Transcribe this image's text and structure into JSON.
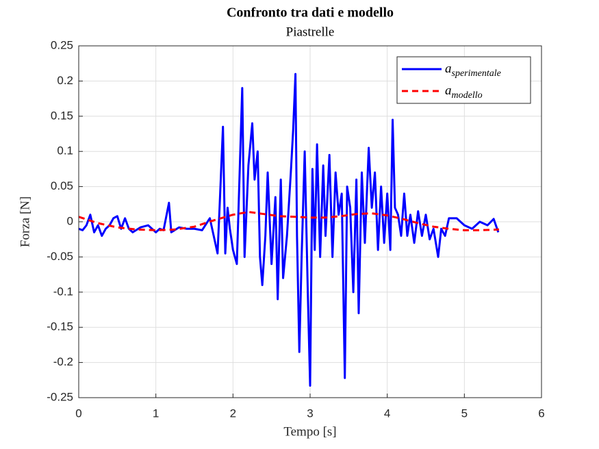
{
  "chart_data": {
    "type": "line",
    "title": "Confronto tra dati e modello",
    "subtitle": "Piastrelle",
    "xlabel": "Tempo [s]",
    "ylabel": "Forza [N]",
    "xlim": [
      0,
      6
    ],
    "xticks": [
      0,
      1,
      2,
      3,
      4,
      5,
      6
    ],
    "ylim": [
      -0.25,
      0.25
    ],
    "yticks": [
      -0.25,
      -0.2,
      -0.15,
      -0.1,
      -0.05,
      0,
      0.05,
      0.1,
      0.15,
      0.2,
      0.25
    ],
    "grid": true,
    "legend": "top-right",
    "series": [
      {
        "name": "a",
        "subscript": "sperimentale",
        "color": "#0000ff",
        "dash": "solid",
        "x": [
          0,
          0.05,
          0.1,
          0.15,
          0.2,
          0.25,
          0.3,
          0.35,
          0.4,
          0.45,
          0.5,
          0.55,
          0.6,
          0.65,
          0.7,
          0.8,
          0.9,
          1.0,
          1.05,
          1.1,
          1.17,
          1.2,
          1.3,
          1.4,
          1.5,
          1.6,
          1.7,
          1.75,
          1.8,
          1.83,
          1.87,
          1.9,
          1.93,
          1.96,
          2.0,
          2.05,
          2.12,
          2.15,
          2.2,
          2.25,
          2.28,
          2.32,
          2.35,
          2.38,
          2.42,
          2.45,
          2.5,
          2.55,
          2.58,
          2.62,
          2.65,
          2.7,
          2.75,
          2.78,
          2.81,
          2.83,
          2.86,
          2.89,
          2.93,
          2.97,
          3.0,
          3.03,
          3.06,
          3.09,
          3.13,
          3.17,
          3.2,
          3.25,
          3.29,
          3.33,
          3.37,
          3.41,
          3.45,
          3.48,
          3.52,
          3.56,
          3.6,
          3.63,
          3.67,
          3.71,
          3.76,
          3.8,
          3.84,
          3.88,
          3.92,
          3.96,
          4.0,
          4.04,
          4.07,
          4.1,
          4.14,
          4.18,
          4.22,
          4.26,
          4.3,
          4.35,
          4.4,
          4.45,
          4.5,
          4.55,
          4.6,
          4.66,
          4.7,
          4.75,
          4.8,
          4.9,
          5.0,
          5.1,
          5.2,
          5.3,
          5.38,
          5.44
        ],
        "values": [
          -0.01,
          -0.012,
          -0.005,
          0.01,
          -0.015,
          -0.005,
          -0.02,
          -0.01,
          -0.005,
          0.005,
          0.008,
          -0.01,
          0.005,
          -0.01,
          -0.015,
          -0.008,
          -0.005,
          -0.015,
          -0.01,
          -0.012,
          0.027,
          -0.015,
          -0.008,
          -0.01,
          -0.01,
          -0.012,
          0.005,
          -0.02,
          -0.045,
          0.03,
          0.135,
          -0.045,
          0.02,
          -0.01,
          -0.04,
          -0.06,
          0.19,
          -0.05,
          0.08,
          0.14,
          0.06,
          0.1,
          -0.05,
          -0.09,
          -0.02,
          0.07,
          -0.06,
          0.035,
          -0.11,
          0.06,
          -0.08,
          -0.02,
          0.07,
          0.13,
          0.21,
          -0.02,
          -0.185,
          -0.05,
          0.1,
          -0.1,
          -0.233,
          0.075,
          -0.04,
          0.11,
          -0.05,
          0.08,
          -0.02,
          0.095,
          -0.05,
          0.07,
          0.01,
          0.04,
          -0.222,
          0.05,
          0.02,
          -0.1,
          0.06,
          -0.13,
          0.07,
          -0.03,
          0.105,
          0.02,
          0.07,
          -0.04,
          0.05,
          -0.03,
          0.04,
          -0.04,
          0.145,
          0.02,
          0.01,
          -0.02,
          0.04,
          -0.02,
          0.01,
          -0.03,
          0.015,
          -0.02,
          0.01,
          -0.025,
          -0.01,
          -0.05,
          -0.01,
          -0.02,
          0.005,
          0.005,
          -0.005,
          -0.01,
          0,
          -0.005,
          0.004,
          -0.015
        ]
      },
      {
        "name": "a",
        "subscript": "modello",
        "color": "#ff0000",
        "dash": "dashed",
        "x": [
          0,
          0.25,
          0.5,
          0.75,
          1.0,
          1.25,
          1.5,
          1.75,
          2.0,
          2.2,
          2.4,
          2.6,
          2.8,
          3.0,
          3.2,
          3.4,
          3.6,
          3.8,
          4.0,
          4.2,
          4.4,
          4.6,
          4.8,
          5.0,
          5.2,
          5.45
        ],
        "values": [
          0.007,
          -0.002,
          -0.008,
          -0.011,
          -0.012,
          -0.011,
          -0.007,
          0.002,
          0.01,
          0.014,
          0.011,
          0.008,
          0.007,
          0.006,
          0.006,
          0.008,
          0.011,
          0.012,
          0.009,
          0.004,
          -0.002,
          -0.007,
          -0.01,
          -0.012,
          -0.012,
          -0.011
        ]
      }
    ]
  }
}
